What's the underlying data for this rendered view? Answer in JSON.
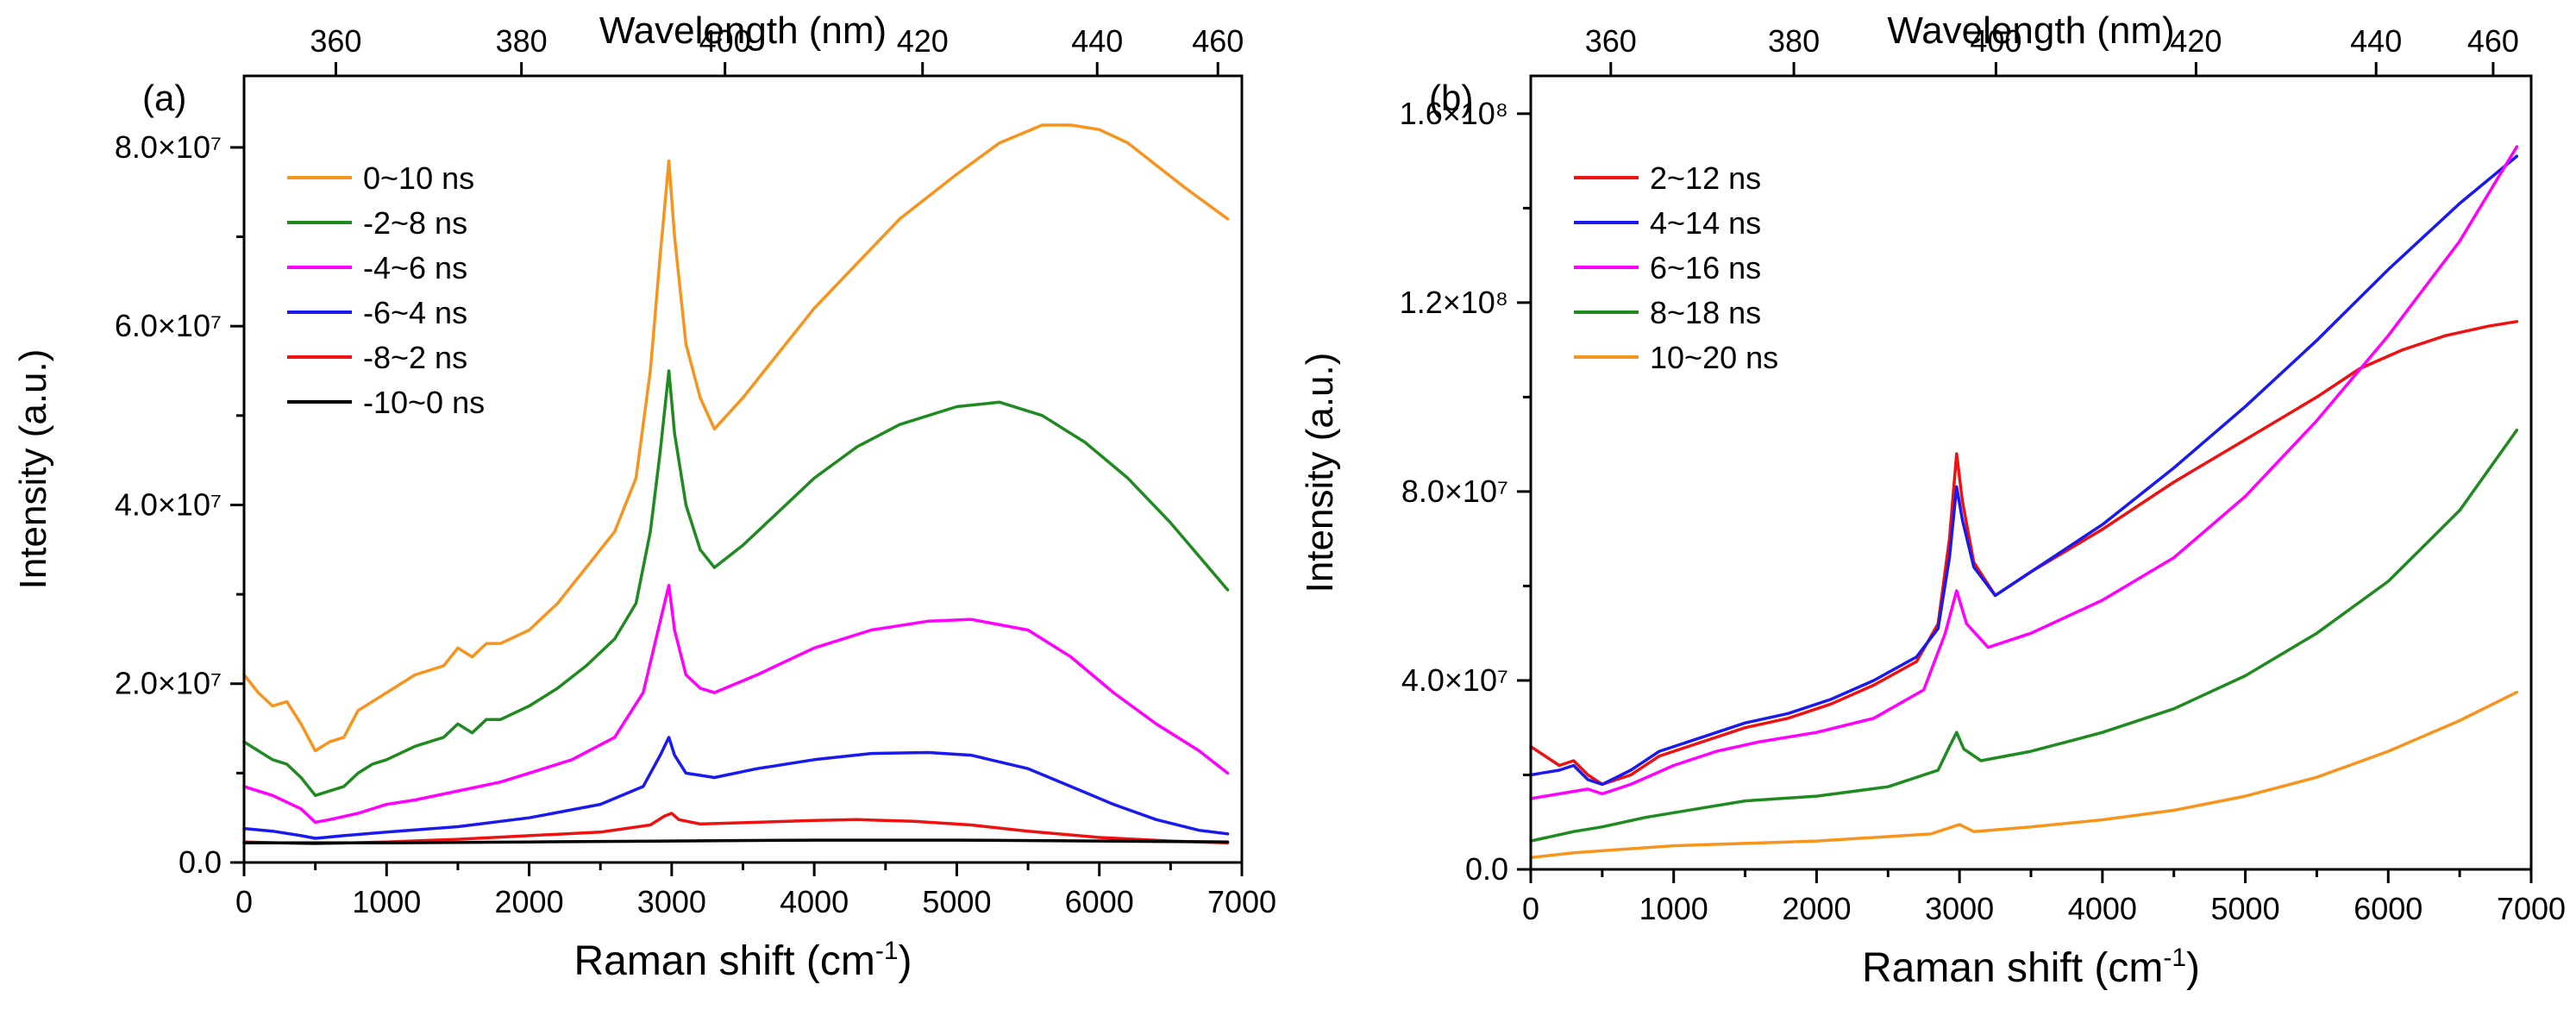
{
  "chart_data": [
    {
      "type": "line",
      "panel_label": "(a)",
      "xlabel": "Raman shift (cm",
      "xlabel_sup": "-1",
      "xlabel_end": ")",
      "ylabel": "Intensity (a.u.)",
      "top_xlabel": "Wavelength (nm)",
      "xlim": [
        0,
        7000
      ],
      "ylim": [
        0,
        88000000
      ],
      "x_ticks": [
        0,
        1000,
        2000,
        3000,
        4000,
        5000,
        6000,
        7000
      ],
      "x_tick_labels": [
        "0",
        "1000",
        "2000",
        "3000",
        "4000",
        "5000",
        "6000",
        "7000"
      ],
      "y_ticks": [
        0,
        20000000,
        40000000,
        60000000,
        80000000
      ],
      "y_tick_labels": [
        "0.0",
        "2.0×10⁷",
        "4.0×10⁷",
        "6.0×10⁷",
        "8.0×10⁷"
      ],
      "top_ticks": [
        360,
        380,
        400,
        420,
        440,
        460
      ],
      "top_tick_labels": [
        "360",
        "380",
        "400",
        "420",
        "440",
        "460"
      ],
      "legend_position": "top-left",
      "series": [
        {
          "name": "0~10 ns",
          "color": "#f7941d",
          "x": [
            0,
            100,
            200,
            300,
            400,
            500,
            600,
            700,
            800,
            900,
            1000,
            1200,
            1400,
            1500,
            1600,
            1700,
            1800,
            2000,
            2200,
            2400,
            2600,
            2750,
            2850,
            2920,
            2980,
            3020,
            3100,
            3200,
            3300,
            3500,
            3800,
            4000,
            4300,
            4600,
            5000,
            5300,
            5600,
            5800,
            6000,
            6200,
            6400,
            6600,
            6900
          ],
          "y": [
            21000000,
            19000000,
            17500000,
            18000000,
            15500000,
            12500000,
            13500000,
            14000000,
            17000000,
            18000000,
            19000000,
            21000000,
            22000000,
            24000000,
            23000000,
            24500000,
            24500000,
            26000000,
            29000000,
            33000000,
            37000000,
            43000000,
            55000000,
            68000000,
            78500000,
            70000000,
            58000000,
            52000000,
            48500000,
            52000000,
            58000000,
            62000000,
            67000000,
            72000000,
            77000000,
            80500000,
            82500000,
            82500000,
            82000000,
            80500000,
            78000000,
            75500000,
            72000000
          ]
        },
        {
          "name": "-2~8 ns",
          "color": "#1f8a1f",
          "x": [
            0,
            100,
            200,
            300,
            400,
            500,
            600,
            700,
            800,
            900,
            1000,
            1200,
            1400,
            1500,
            1600,
            1700,
            1800,
            2000,
            2200,
            2400,
            2600,
            2750,
            2850,
            2920,
            2980,
            3020,
            3100,
            3200,
            3300,
            3500,
            3800,
            4000,
            4300,
            4600,
            5000,
            5300,
            5600,
            5900,
            6200,
            6500,
            6900
          ],
          "y": [
            13500000,
            12500000,
            11500000,
            11000000,
            9500000,
            7500000,
            8000000,
            8500000,
            10000000,
            11000000,
            11500000,
            13000000,
            14000000,
            15500000,
            14500000,
            16000000,
            16000000,
            17500000,
            19500000,
            22000000,
            25000000,
            29000000,
            37000000,
            46000000,
            55000000,
            48000000,
            40000000,
            35000000,
            33000000,
            35500000,
            40000000,
            43000000,
            46500000,
            49000000,
            51000000,
            51500000,
            50000000,
            47000000,
            43000000,
            38000000,
            30500000
          ]
        },
        {
          "name": "-4~6 ns",
          "color": "#ff00ff",
          "x": [
            0,
            200,
            400,
            500,
            600,
            800,
            1000,
            1200,
            1500,
            1800,
            2000,
            2300,
            2600,
            2800,
            2920,
            2980,
            3020,
            3100,
            3200,
            3300,
            3600,
            4000,
            4400,
            4800,
            5100,
            5500,
            5800,
            6100,
            6400,
            6700,
            6900
          ],
          "y": [
            8500000,
            7500000,
            6000000,
            4500000,
            4800000,
            5500000,
            6500000,
            7000000,
            8000000,
            9000000,
            10000000,
            11500000,
            14000000,
            19000000,
            27000000,
            31000000,
            26000000,
            21000000,
            19500000,
            19000000,
            21000000,
            24000000,
            26000000,
            27000000,
            27200000,
            26000000,
            23000000,
            19000000,
            15500000,
            12500000,
            10000000
          ]
        },
        {
          "name": "-6~4 ns",
          "color": "#1a1aee",
          "x": [
            0,
            200,
            400,
            500,
            700,
            1000,
            1500,
            2000,
            2500,
            2800,
            2920,
            2980,
            3020,
            3100,
            3300,
            3600,
            4000,
            4400,
            4800,
            5100,
            5500,
            5800,
            6100,
            6400,
            6700,
            6900
          ],
          "y": [
            3800000,
            3500000,
            3000000,
            2700000,
            3000000,
            3400000,
            4000000,
            5000000,
            6500000,
            8500000,
            12000000,
            14000000,
            12000000,
            10000000,
            9500000,
            10500000,
            11500000,
            12200000,
            12300000,
            12000000,
            10500000,
            8500000,
            6500000,
            4800000,
            3600000,
            3200000
          ]
        },
        {
          "name": "-8~2 ns",
          "color": "#ee1111",
          "x": [
            0,
            500,
            1000,
            1500,
            2000,
            2500,
            2850,
            2950,
            3000,
            3050,
            3200,
            3600,
            4000,
            4300,
            4700,
            5100,
            5500,
            6000,
            6500,
            6900
          ],
          "y": [
            2300000,
            2100000,
            2300000,
            2600000,
            3000000,
            3400000,
            4200000,
            5200000,
            5500000,
            4800000,
            4300000,
            4500000,
            4700000,
            4800000,
            4600000,
            4200000,
            3500000,
            2800000,
            2400000,
            2200000
          ]
        },
        {
          "name": "-10~0 ns",
          "color": "#000000",
          "x": [
            0,
            1000,
            2000,
            3000,
            4000,
            4500,
            5000,
            6000,
            6900
          ],
          "y": [
            2200000,
            2200000,
            2300000,
            2400000,
            2500000,
            2500000,
            2500000,
            2400000,
            2300000
          ]
        }
      ]
    },
    {
      "type": "line",
      "panel_label": "(b)",
      "xlabel": "Raman shift (cm",
      "xlabel_sup": "-1",
      "xlabel_end": ")",
      "ylabel": "Intensity (a.u.)",
      "top_xlabel": "Wavelength (nm)",
      "xlim": [
        0,
        7000
      ],
      "ylim": [
        0,
        168000000
      ],
      "x_ticks": [
        0,
        1000,
        2000,
        3000,
        4000,
        5000,
        6000,
        7000
      ],
      "x_tick_labels": [
        "0",
        "1000",
        "2000",
        "3000",
        "4000",
        "5000",
        "6000",
        "7000"
      ],
      "y_ticks": [
        0,
        40000000,
        80000000,
        120000000,
        160000000
      ],
      "y_tick_labels": [
        "0.0",
        "4.0×10⁷",
        "8.0×10⁷",
        "1.2×10⁸",
        "1.6×10⁸"
      ],
      "top_ticks": [
        360,
        380,
        400,
        420,
        440,
        460
      ],
      "top_tick_labels": [
        "360",
        "380",
        "400",
        "420",
        "440",
        "460"
      ],
      "legend_position": "top-left",
      "series": [
        {
          "name": "2~12 ns",
          "color": "#ee1111",
          "x": [
            0,
            100,
            200,
            300,
            400,
            500,
            700,
            900,
            1200,
            1500,
            1800,
            2100,
            2400,
            2700,
            2850,
            2930,
            2980,
            3020,
            3100,
            3250,
            3500,
            4000,
            4500,
            5000,
            5500,
            5800,
            6100,
            6400,
            6700,
            6900
          ],
          "y": [
            26000000,
            24000000,
            22000000,
            23000000,
            20000000,
            18000000,
            20000000,
            24000000,
            27000000,
            30000000,
            32000000,
            35000000,
            39000000,
            44000000,
            52000000,
            70000000,
            88000000,
            78000000,
            65000000,
            58000000,
            63000000,
            72000000,
            82000000,
            91000000,
            100000000,
            106000000,
            110000000,
            113000000,
            115000000,
            116000000
          ]
        },
        {
          "name": "4~14 ns",
          "color": "#1a1aee",
          "x": [
            0,
            100,
            200,
            300,
            400,
            500,
            700,
            900,
            1200,
            1500,
            1800,
            2100,
            2400,
            2700,
            2850,
            2930,
            2980,
            3020,
            3100,
            3250,
            3500,
            4000,
            4500,
            5000,
            5500,
            6000,
            6500,
            6900
          ],
          "y": [
            20000000,
            20500000,
            21000000,
            22000000,
            19000000,
            18000000,
            21000000,
            25000000,
            28000000,
            31000000,
            33000000,
            36000000,
            40000000,
            45000000,
            51000000,
            66000000,
            81000000,
            74000000,
            64000000,
            58000000,
            63000000,
            73000000,
            85000000,
            98000000,
            112000000,
            127000000,
            141000000,
            151000000
          ]
        },
        {
          "name": "6~16 ns",
          "color": "#ff00ff",
          "x": [
            0,
            200,
            400,
            500,
            700,
            1000,
            1300,
            1600,
            2000,
            2400,
            2750,
            2900,
            2980,
            3050,
            3200,
            3500,
            4000,
            4500,
            5000,
            5500,
            6000,
            6500,
            6900
          ],
          "y": [
            15000000,
            16000000,
            17000000,
            16000000,
            18000000,
            22000000,
            25000000,
            27000000,
            29000000,
            32000000,
            38000000,
            50000000,
            59000000,
            52000000,
            47000000,
            50000000,
            57000000,
            66000000,
            79000000,
            95000000,
            113000000,
            133000000,
            153000000
          ]
        },
        {
          "name": "8~18 ns",
          "color": "#1f8a1f",
          "x": [
            0,
            300,
            500,
            800,
            1200,
            1500,
            2000,
            2500,
            2850,
            2930,
            2980,
            3030,
            3150,
            3500,
            4000,
            4500,
            5000,
            5500,
            6000,
            6500,
            6900
          ],
          "y": [
            6000000,
            8000000,
            9000000,
            11000000,
            13000000,
            14500000,
            15500000,
            17500000,
            21000000,
            26000000,
            29000000,
            25500000,
            23000000,
            25000000,
            29000000,
            34000000,
            41000000,
            50000000,
            61000000,
            76000000,
            93000000
          ]
        },
        {
          "name": "10~20 ns",
          "color": "#f7941d",
          "x": [
            0,
            300,
            1000,
            2000,
            2800,
            2950,
            3000,
            3100,
            3500,
            4000,
            4500,
            5000,
            5500,
            6000,
            6500,
            6900
          ],
          "y": [
            2500000,
            3500000,
            5000000,
            6000000,
            7500000,
            9000000,
            9500000,
            8000000,
            9000000,
            10500000,
            12500000,
            15500000,
            19500000,
            25000000,
            31500000,
            37500000
          ]
        }
      ]
    }
  ]
}
